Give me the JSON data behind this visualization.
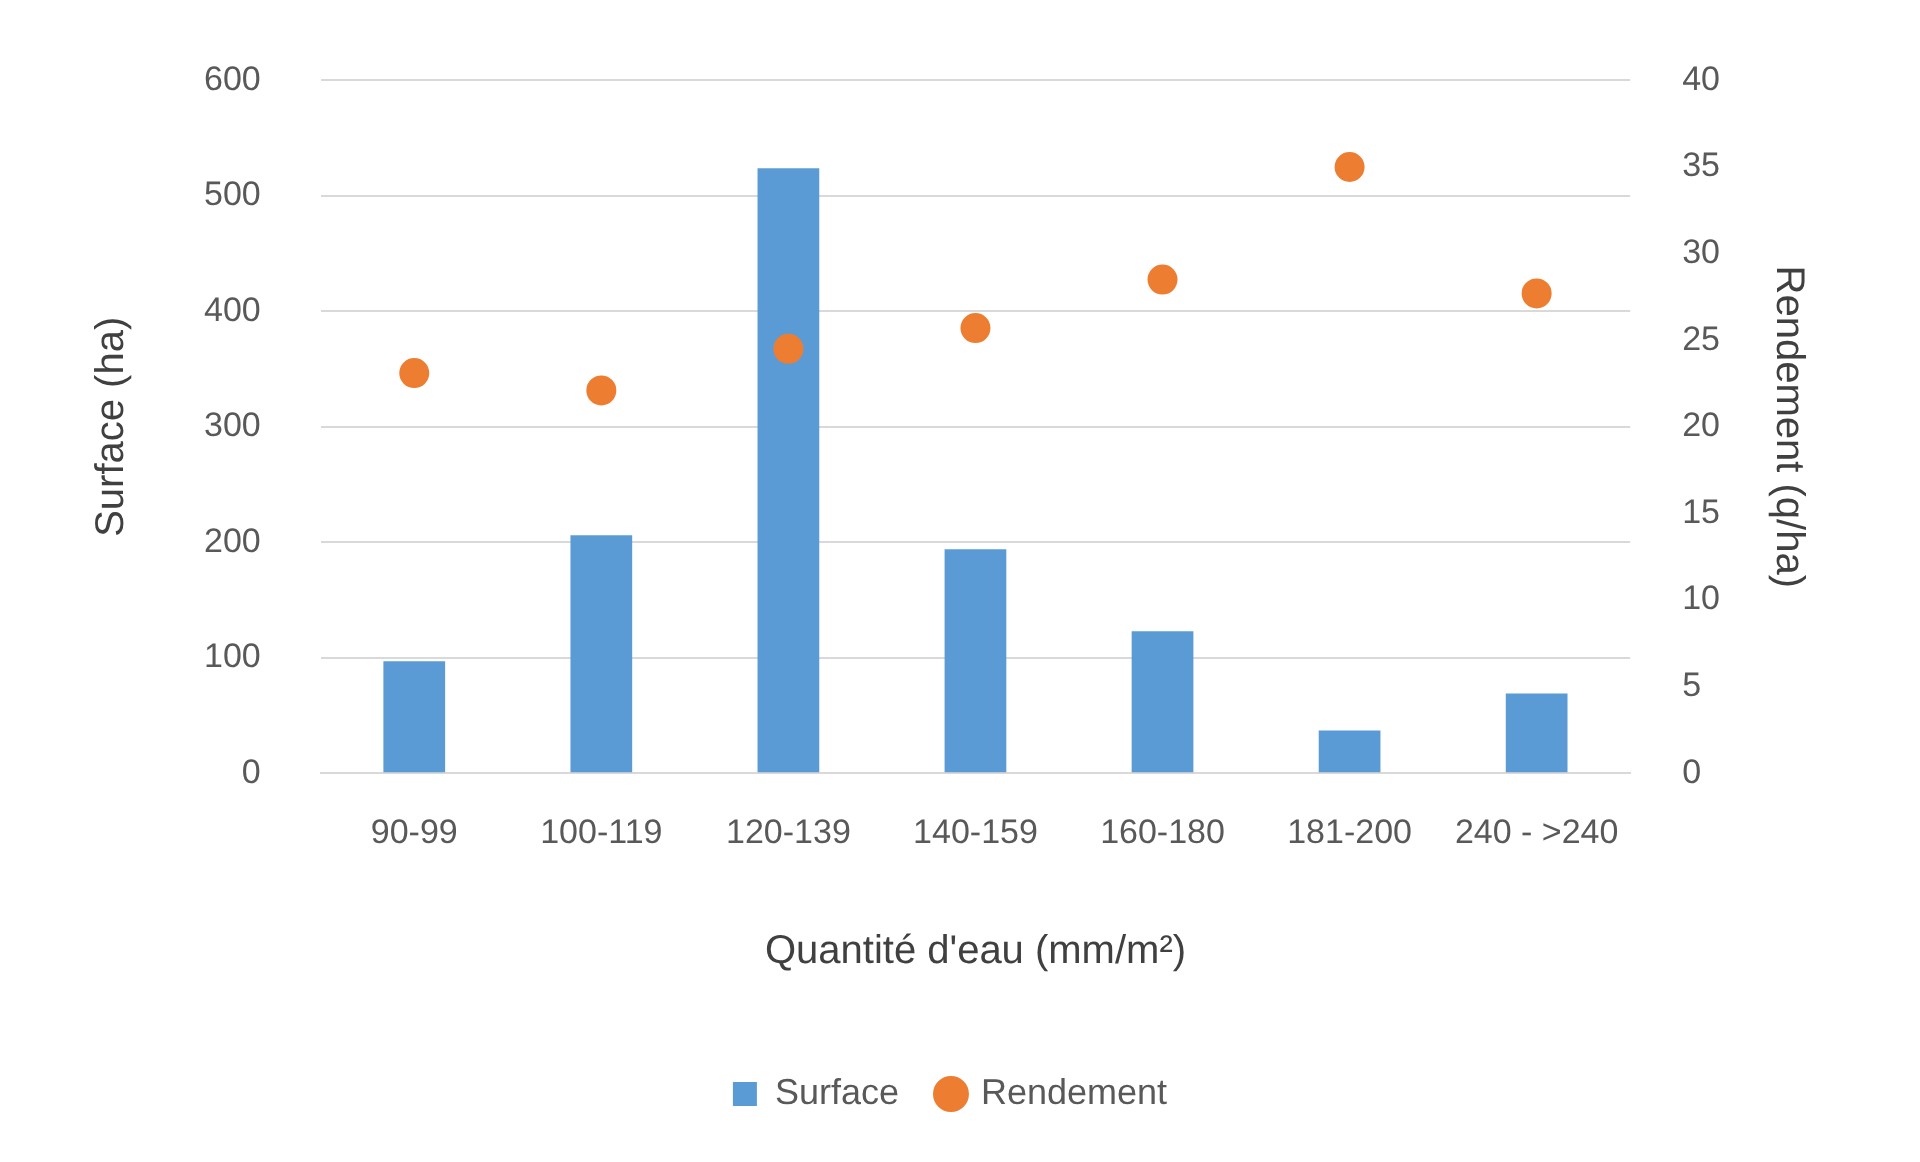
{
  "chart_data": {
    "type": "bar",
    "xlabel": "Quantité d'eau (mm/m²)",
    "ylabel": "Surface (ha)",
    "y2label": "Rendement (q/ha)",
    "categories": [
      "90-99",
      "100-119",
      "120-139",
      "140-159",
      "160-180",
      "181-200",
      "240 - >240"
    ],
    "series": [
      {
        "name": "Surface",
        "color": "#5b9bd5",
        "values": [
          97,
          206,
          524,
          194,
          123,
          37,
          69
        ]
      },
      {
        "name": "Rendement",
        "type": "scatter",
        "axis": "y2",
        "color": "#ed7d31",
        "values": [
          23.1,
          22.1,
          24.5,
          25.7,
          28.5,
          35.0,
          27.7
        ]
      }
    ],
    "ylim": [
      0,
      600
    ],
    "yticks": [
      0,
      100,
      200,
      300,
      400,
      500,
      600
    ],
    "y2lim": [
      0,
      40
    ],
    "y2ticks": [
      0,
      5,
      10,
      15,
      20,
      25,
      30,
      35,
      40
    ],
    "grid": "y",
    "legend": "bottom",
    "marker": "circle"
  }
}
